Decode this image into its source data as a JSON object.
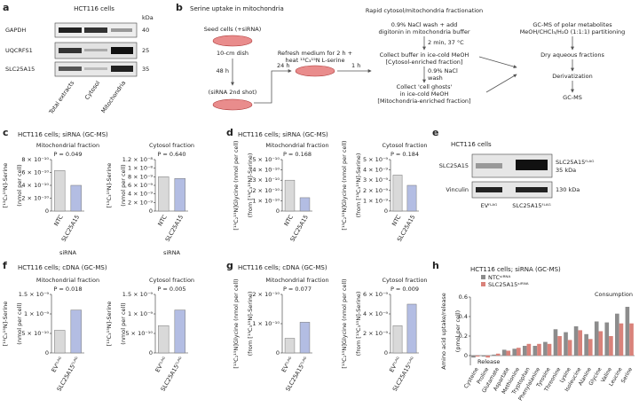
{
  "panel_labels": [
    "a",
    "b",
    "c",
    "d",
    "e",
    "f",
    "g",
    "h"
  ],
  "blot_a": {
    "title": "HCT116 cells",
    "unit": "kDa",
    "rows": [
      {
        "name": "GAPDH",
        "kda": 40
      },
      {
        "name": "UQCRFS1",
        "kda": 25
      },
      {
        "name": "SLC25A15",
        "kda": 35
      }
    ],
    "lanes": [
      "Total extracts",
      "Cytosol",
      "Mitochondria"
    ]
  },
  "diagram": {
    "title": "Serine uptake in mitochondria",
    "texts": [
      "Seed cells (+siRNA)",
      "10-cm dish",
      "48 h",
      "(siRNA 2nd shot)",
      "24 h",
      "Refresh medium for 2 h +",
      "heat ¹³C₃¹⁵N L-serine",
      "1 h",
      "Rapid cytosol/mitochondria fractionation",
      "0.9% NaCl wash + add",
      "digitonin in mitochondria buffer",
      "2 min, 37 °C",
      "Collect buffer in ice-cold MeOH",
      "[Cytosol-enriched fraction]",
      "0.9% NaCl",
      "wash",
      "Collect 'cell ghosts'",
      "in ice-cold MeOH",
      "[Mitochondria-enriched fraction]",
      "GC-MS of polar metabolites",
      "MeOH/CHCl₃/H₂O (1:1:1) partitioning",
      "Dry aqueous fractions",
      "Derivatization",
      "GC-MS"
    ]
  },
  "blot_e": {
    "title": "HCT116 cells",
    "rows": [
      {
        "name": "SLC25A15",
        "band": "SLC25A15ᶠᴸᴬᴳ",
        "kda": "35 kDa"
      },
      {
        "name": "Vinculin",
        "kda": "130 kDa"
      }
    ],
    "lanes": [
      "EVᶠᴸᴬᴳ",
      "SLC25A15ᶠᴸᴬᴳ"
    ]
  },
  "headers": {
    "c": "HCT116 cells; siRNA (GC-MS)",
    "d": "HCT116 cells; siRNA (GC-MS)",
    "f": "HCT116 cells; cDNA (GC-MS)",
    "g": "HCT116 cells; cDNA (GC-MS)",
    "h": "HCT116 cells; siRNA (GC-MS)"
  },
  "chart_data": [
    {
      "type": "bar",
      "title": "Mitochondrial fraction",
      "annotation": "P = 0.049",
      "ylabel": [
        "[¹³C₃¹⁵N]-Serine",
        "(nmol per cell)"
      ],
      "xlabel": "siRNA",
      "categories": [
        "NTC",
        "SLC25A15"
      ],
      "values": [
        6.3e-10,
        4e-10
      ],
      "colors": [
        "#d9d9d9",
        "#b3bde3"
      ],
      "ylim": [
        0,
        8e-10
      ],
      "yticks": [
        0,
        {
          "value": 2e-10,
          "label": "2 × 10⁻¹⁰"
        },
        {
          "value": 4e-10,
          "label": "4 × 10⁻¹⁰"
        },
        {
          "value": 6e-10,
          "label": "6 × 10⁻¹⁰"
        },
        {
          "value": 8e-10,
          "label": "8 × 10⁻¹⁰"
        }
      ]
    },
    {
      "type": "bar",
      "title": "Cytosol fraction",
      "annotation": "P = 0.640",
      "ylabel": [
        "[¹³C₃¹⁵N]-Serine",
        "(nmol per cell)"
      ],
      "xlabel": "siRNA",
      "categories": [
        "NTC",
        "SLC25A15"
      ],
      "values": [
        8e-09,
        7.6e-09
      ],
      "colors": [
        "#d9d9d9",
        "#b3bde3"
      ],
      "ylim": [
        0,
        1.2e-08
      ],
      "yticks": [
        0,
        {
          "value": 2e-09,
          "label": "2 × 10⁻⁹"
        },
        {
          "value": 4e-09,
          "label": "4 × 10⁻⁹"
        },
        {
          "value": 6e-09,
          "label": "6 × 10⁻⁹"
        },
        {
          "value": 8e-09,
          "label": "8 × 10⁻⁹"
        },
        {
          "value": 1e-08,
          "label": "1 × 10⁻⁸"
        },
        {
          "value": 1.2e-08,
          "label": "1.2 × 10⁻⁸"
        }
      ]
    },
    {
      "type": "bar",
      "title": "Mitochondrial fraction",
      "annotation": "P = 0.168",
      "ylabel": [
        "[¹³C₂¹⁵N]Glycine (nmol per cell)",
        "(from [¹³C₃¹⁵N]-Serine)"
      ],
      "categories": [
        "NTC",
        "SLC25A15"
      ],
      "values": [
        3e-10,
        1.3e-10
      ],
      "colors": [
        "#d9d9d9",
        "#b3bde3"
      ],
      "ylim": [
        0,
        5e-10
      ],
      "yticks": [
        0,
        {
          "value": 1e-10,
          "label": "1 × 10⁻¹⁰"
        },
        {
          "value": 2e-10,
          "label": "2 × 10⁻¹⁰"
        },
        {
          "value": 3e-10,
          "label": "3 × 10⁻¹⁰"
        },
        {
          "value": 4e-10,
          "label": "4 × 10⁻¹⁰"
        },
        {
          "value": 5e-10,
          "label": "5 × 10⁻¹⁰"
        }
      ]
    },
    {
      "type": "bar",
      "title": "Cytosol fraction",
      "annotation": "P = 0.184",
      "ylabel": [
        "[¹³C₂¹⁵N]Glycine (nmol per cell)",
        "(from [¹³C₃¹⁵N]-Serine)"
      ],
      "categories": [
        "NTC",
        "SLC25A15"
      ],
      "values": [
        3.5e-09,
        2.5e-09
      ],
      "colors": [
        "#d9d9d9",
        "#b3bde3"
      ],
      "ylim": [
        0,
        5e-09
      ],
      "yticks": [
        0,
        {
          "value": 1e-09,
          "label": "1 × 10⁻⁹"
        },
        {
          "value": 2e-09,
          "label": "2 × 10⁻⁹"
        },
        {
          "value": 3e-09,
          "label": "3 × 10⁻⁹"
        },
        {
          "value": 4e-09,
          "label": "4 × 10⁻⁹"
        },
        {
          "value": 5e-09,
          "label": "5 × 10⁻⁹"
        }
      ]
    },
    {
      "type": "bar",
      "title": "Mitochondrial fraction",
      "annotation": "P = 0.018",
      "ylabel": [
        "[¹³C₃¹⁵N]-Serine",
        "(nmol per cell)"
      ],
      "categories": [
        "EVᶠᴸᴬᴳ",
        "SLC25A15ᶠᴸᴬᴳ"
      ],
      "values": [
        5.8e-10,
        1.1e-09
      ],
      "colors": [
        "#d9d9d9",
        "#b3bde3"
      ],
      "ylim": [
        0,
        1.5e-09
      ],
      "yticks": [
        0,
        {
          "value": 5e-10,
          "label": "5 × 10⁻¹⁰"
        },
        {
          "value": 1e-09,
          "label": "1 × 10⁻⁹"
        },
        {
          "value": 1.5e-09,
          "label": "1.5 × 10⁻⁹"
        }
      ]
    },
    {
      "type": "bar",
      "title": "Cytosol fraction",
      "annotation": "P = 0.005",
      "ylabel": [
        "[¹³C₃¹⁵N]-Serine",
        "(nmol per cell)"
      ],
      "categories": [
        "EVᶠᴸᴬᴳ",
        "SLC25A15ᶠᴸᴬᴳ"
      ],
      "values": [
        7e-10,
        1.1e-09
      ],
      "colors": [
        "#d9d9d9",
        "#b3bde3"
      ],
      "ylim": [
        0,
        1.5e-09
      ],
      "yticks": [
        0,
        {
          "value": 5e-10,
          "label": "5 × 10⁻¹⁰"
        },
        {
          "value": 1e-09,
          "label": "1 × 10⁻⁹"
        },
        {
          "value": 1.5e-09,
          "label": "1.5 × 10⁻⁹"
        }
      ]
    },
    {
      "type": "bar",
      "title": "Mitochondrial fraction",
      "annotation": "P = 0.077",
      "ylabel": [
        "[¹³C₂¹⁵N]Glycine (nmol per cell)",
        "(from [¹³C₃¹⁵N]-Serine)"
      ],
      "categories": [
        "EVᶠᴸᴬᴳ",
        "SLC25A15ᶠᴸᴬᴳ"
      ],
      "values": [
        5e-11,
        1.05e-10
      ],
      "colors": [
        "#d9d9d9",
        "#b3bde3"
      ],
      "ylim": [
        0,
        2e-10
      ],
      "yticks": [
        0,
        {
          "value": 1e-10,
          "label": "1 × 10⁻¹⁰"
        },
        {
          "value": 2e-10,
          "label": "2 × 10⁻¹⁰"
        }
      ]
    },
    {
      "type": "bar",
      "title": "Cytosol fraction",
      "annotation": "P = 0.009",
      "ylabel": [
        "[¹³C₂¹⁵N]Glycine (nmol per cell)",
        "(from [¹³C₃¹⁵N]-Serine)"
      ],
      "categories": [
        "EVᶠᴸᴬᴳ",
        "SLC25A15ᶠᴸᴬᴳ"
      ],
      "values": [
        2.8e-09,
        5e-09
      ],
      "colors": [
        "#d9d9d9",
        "#b3bde3"
      ],
      "ylim": [
        0,
        6e-09
      ],
      "yticks": [
        0,
        {
          "value": 2e-09,
          "label": "2 × 10⁻⁹"
        },
        {
          "value": 4e-09,
          "label": "4 × 10⁻⁹"
        },
        {
          "value": 6e-09,
          "label": "6 × 10⁻⁹"
        }
      ]
    },
    {
      "type": "grouped_bar",
      "ylabel": [
        "Amino acid uptake/release",
        "(pmol per cell)"
      ],
      "annotations": [
        "Release",
        "Consumption"
      ],
      "categories": [
        "Cysteine",
        "Proline",
        "Glutamate",
        "Aspartate",
        "Methionine",
        "Tryptophan",
        "Phenylalanine",
        "Tyrosine",
        "Threonine",
        "Lysine",
        "Isoleucine",
        "Alanine",
        "Glycine",
        "Valine",
        "Leucine",
        "Serine"
      ],
      "series": [
        {
          "name": "NTCˢⁱᴿᴺᴬ",
          "color": "#8c8c8c",
          "values": [
            -0.02,
            -0.01,
            0.01,
            0.06,
            0.07,
            0.1,
            0.1,
            0.14,
            0.27,
            0.24,
            0.3,
            0.22,
            0.35,
            0.34,
            0.43,
            0.5
          ]
        },
        {
          "name": "SLC25A15ˢⁱᴿᴺᴬ",
          "color": "#d9827a",
          "values": [
            -0.01,
            -0.02,
            0.02,
            0.05,
            0.08,
            0.12,
            0.12,
            0.12,
            0.2,
            0.16,
            0.26,
            0.17,
            0.25,
            0.2,
            0.33,
            0.33
          ]
        }
      ],
      "ylim": [
        -0.1,
        0.6
      ],
      "yticks": [
        0,
        0.2,
        0.4,
        0.6
      ]
    }
  ]
}
